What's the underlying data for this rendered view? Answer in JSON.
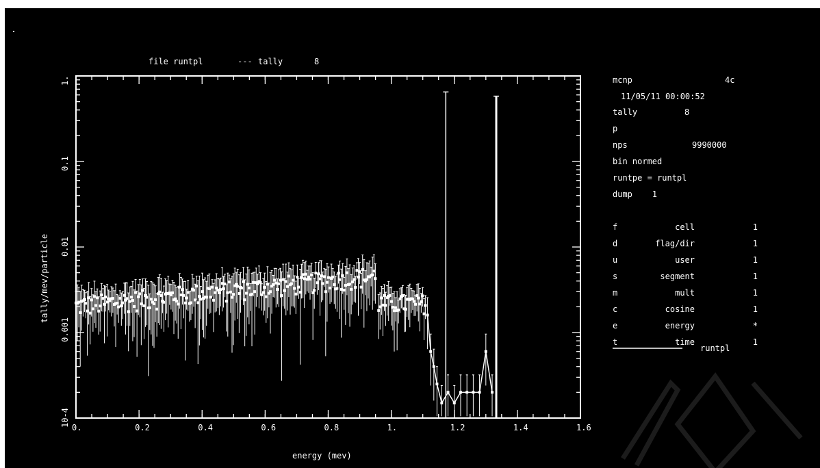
{
  "header": {
    "file_label": "file runtpl",
    "sep": "---",
    "tally_label": "tally",
    "tally_value": "8"
  },
  "info": {
    "line1": "mcnp 4c",
    "code_name": "mcnp",
    "code_version": "4c",
    "datetime": "11/05/11 00:00:52",
    "tally_label": "tally",
    "tally_value": "8",
    "particle": "p",
    "nps_label": "nps",
    "nps_value": "9990000",
    "normalization": "bin normed",
    "runtpe": "runtpe = runtpl",
    "dump": "dump    1",
    "bins": [
      {
        "key": "f",
        "name": "cell",
        "value": "1"
      },
      {
        "key": "d",
        "name": "flag/dir",
        "value": "1"
      },
      {
        "key": "u",
        "name": "user",
        "value": "1"
      },
      {
        "key": "s",
        "name": "segment",
        "value": "1"
      },
      {
        "key": "m",
        "name": "mult",
        "value": "1"
      },
      {
        "key": "c",
        "name": "cosine",
        "value": "1"
      },
      {
        "key": "e",
        "name": "energy",
        "value": "*"
      },
      {
        "key": "t",
        "name": "time",
        "value": "1"
      }
    ],
    "legend_label": "runtpl",
    "legend_color": "#ffffff"
  },
  "chart_data": {
    "type": "line",
    "scale_y": "log",
    "xlabel": "energy (mev)",
    "ylabel": "tally/mev/particle",
    "xlim": [
      0,
      1.6
    ],
    "ylim": [
      0.0001,
      1
    ],
    "x_ticks": [
      {
        "v": 0,
        "label": "0."
      },
      {
        "v": 0.2,
        "label": "0.2"
      },
      {
        "v": 0.4,
        "label": "0.4"
      },
      {
        "v": 0.6,
        "label": "0.6"
      },
      {
        "v": 0.8,
        "label": "0.8"
      },
      {
        "v": 1.0,
        "label": "1."
      },
      {
        "v": 1.2,
        "label": "1.2"
      },
      {
        "v": 1.4,
        "label": "1.4"
      },
      {
        "v": 1.6,
        "label": "1.6"
      }
    ],
    "y_ticks": [
      {
        "v": 1,
        "label": "1."
      },
      {
        "v": 0.1,
        "label": "0.1"
      },
      {
        "v": 0.01,
        "label": "0.01"
      },
      {
        "v": 0.001,
        "label": "0.001"
      },
      {
        "v": 0.0001,
        "label": "10-4"
      }
    ],
    "grid": false,
    "legend": "right",
    "color": "#ffffff",
    "series": [
      {
        "name": "runtpl",
        "continuum": {
          "x_start": 0.0,
          "x_end": 0.95,
          "y_start": 0.002,
          "y_end": 0.0045
        },
        "shelf": {
          "x_start": 0.96,
          "x_end": 1.11,
          "y": 0.0022
        },
        "edge_points": [
          {
            "x": 1.115,
            "y": 0.0016
          },
          {
            "x": 1.125,
            "y": 0.0006
          },
          {
            "x": 1.135,
            "y": 0.0004
          },
          {
            "x": 1.145,
            "y": 0.00025
          },
          {
            "x": 1.16,
            "y": 0.00015
          },
          {
            "x": 1.18,
            "y": 0.0002
          },
          {
            "x": 1.2,
            "y": 0.00015
          },
          {
            "x": 1.22,
            "y": 0.0002
          },
          {
            "x": 1.24,
            "y": 0.0002
          },
          {
            "x": 1.26,
            "y": 0.0002
          },
          {
            "x": 1.28,
            "y": 0.0002
          },
          {
            "x": 1.3,
            "y": 0.0006
          },
          {
            "x": 1.32,
            "y": 0.0002
          }
        ],
        "peaks": [
          {
            "x": 1.173,
            "y": 0.65
          },
          {
            "x": 1.333,
            "y": 0.58
          }
        ]
      }
    ]
  }
}
